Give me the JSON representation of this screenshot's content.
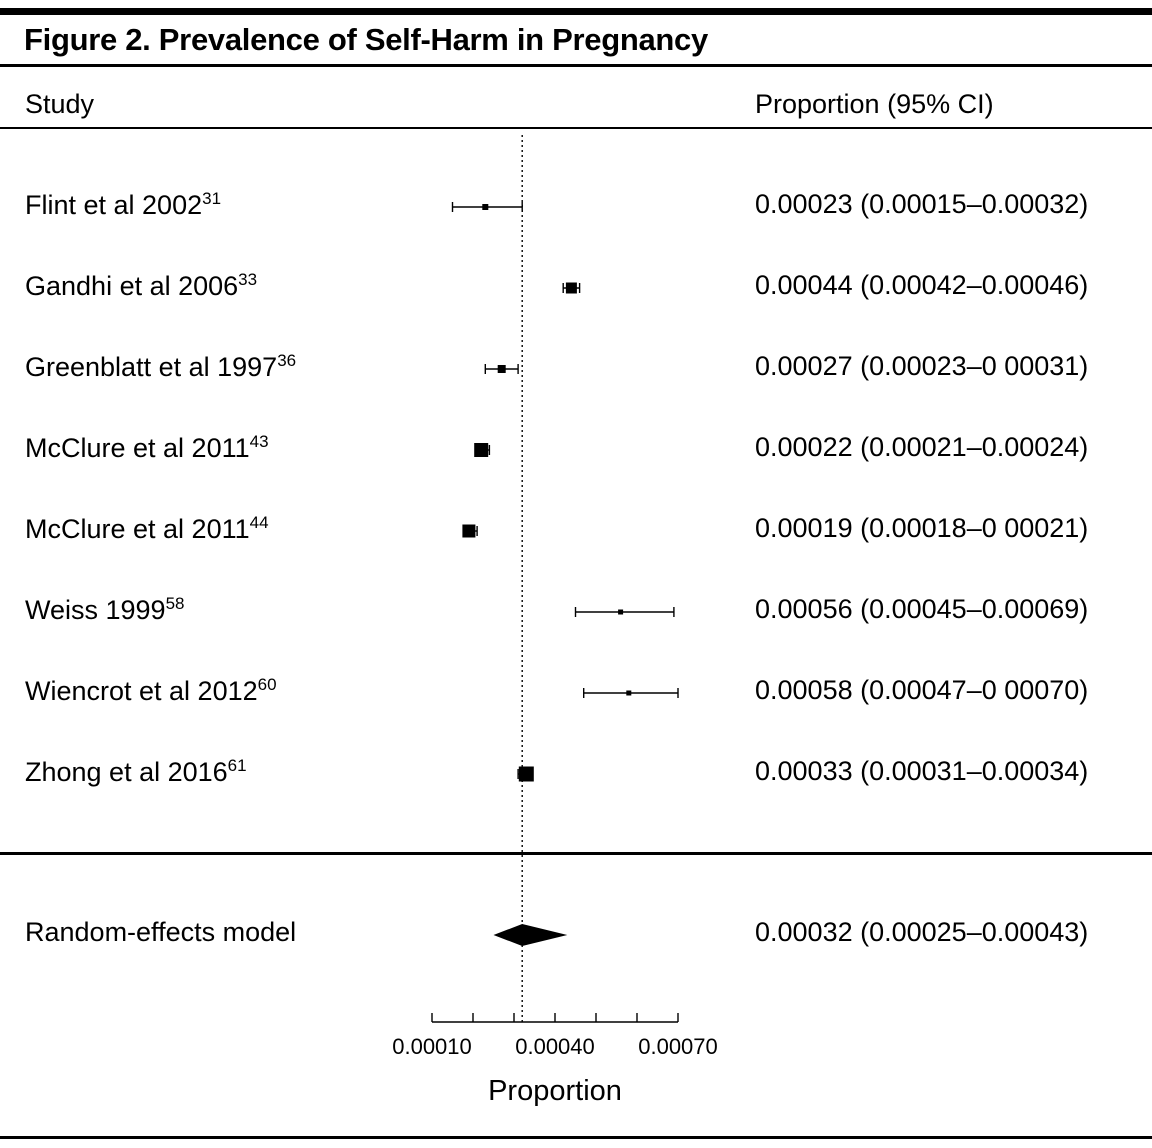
{
  "figure": {
    "title": "Figure 2. Prevalence of Self-Harm in Pregnancy",
    "col_study": "Study",
    "col_proportion": "Proportion (95% CI)"
  },
  "colors": {
    "foreground": "#000000",
    "background": "#ffffff"
  },
  "chart_data": {
    "type": "forest",
    "title": "Figure 2. Prevalence of Self-Harm in Pregnancy",
    "xlabel": "Proportion",
    "xlim": [
      0.0001,
      0.0007
    ],
    "axis_ticks": [
      0.0001,
      0.0004,
      0.0007
    ],
    "axis_tick_labels": [
      "0.00010",
      "0.00040",
      "0.00070"
    ],
    "minor_tick_step": 0.0001,
    "reference_line": 0.00032,
    "studies": [
      {
        "name": "Flint et al 2002",
        "ref": "31",
        "est": 0.00023,
        "lo": 0.00015,
        "hi": 0.00032,
        "ci_text": "0.00023 (0.00015–0.00032)",
        "marker_size": 6
      },
      {
        "name": "Gandhi et al 2006",
        "ref": "33",
        "est": 0.00044,
        "lo": 0.00042,
        "hi": 0.00046,
        "ci_text": "0.00044 (0.00042–0.00046)",
        "marker_size": 11
      },
      {
        "name": "Greenblatt et al 1997",
        "ref": "36",
        "est": 0.00027,
        "lo": 0.00023,
        "hi": 0.00031,
        "ci_text": "0.00027 (0.00023–0 00031)",
        "marker_size": 8
      },
      {
        "name": "McClure et al 2011",
        "ref": "43",
        "est": 0.00022,
        "lo": 0.00021,
        "hi": 0.00024,
        "ci_text": "0.00022 (0.00021–0.00024)",
        "marker_size": 14
      },
      {
        "name": "McClure et al 2011",
        "ref": "44",
        "est": 0.00019,
        "lo": 0.00018,
        "hi": 0.00021,
        "ci_text": "0.00019 (0.00018–0 00021)",
        "marker_size": 13
      },
      {
        "name": "Weiss 1999",
        "ref": "58",
        "est": 0.00056,
        "lo": 0.00045,
        "hi": 0.00069,
        "ci_text": "0.00056 (0.00045–0.00069)",
        "marker_size": 5
      },
      {
        "name": "Wiencrot et al 2012",
        "ref": "60",
        "est": 0.00058,
        "lo": 0.00047,
        "hi": 0.0007,
        "ci_text": "0.00058 (0.00047–0 00070)",
        "marker_size": 5
      },
      {
        "name": "Zhong et al 2016",
        "ref": "61",
        "est": 0.00033,
        "lo": 0.00031,
        "hi": 0.00034,
        "ci_text": "0.00033 (0.00031–0.00034)",
        "marker_size": 15
      }
    ],
    "summary": {
      "name": "Random-effects model",
      "est": 0.00032,
      "lo": 0.00025,
      "hi": 0.00043,
      "ci_text": "0.00032 (0.00025–0.00043)"
    }
  }
}
